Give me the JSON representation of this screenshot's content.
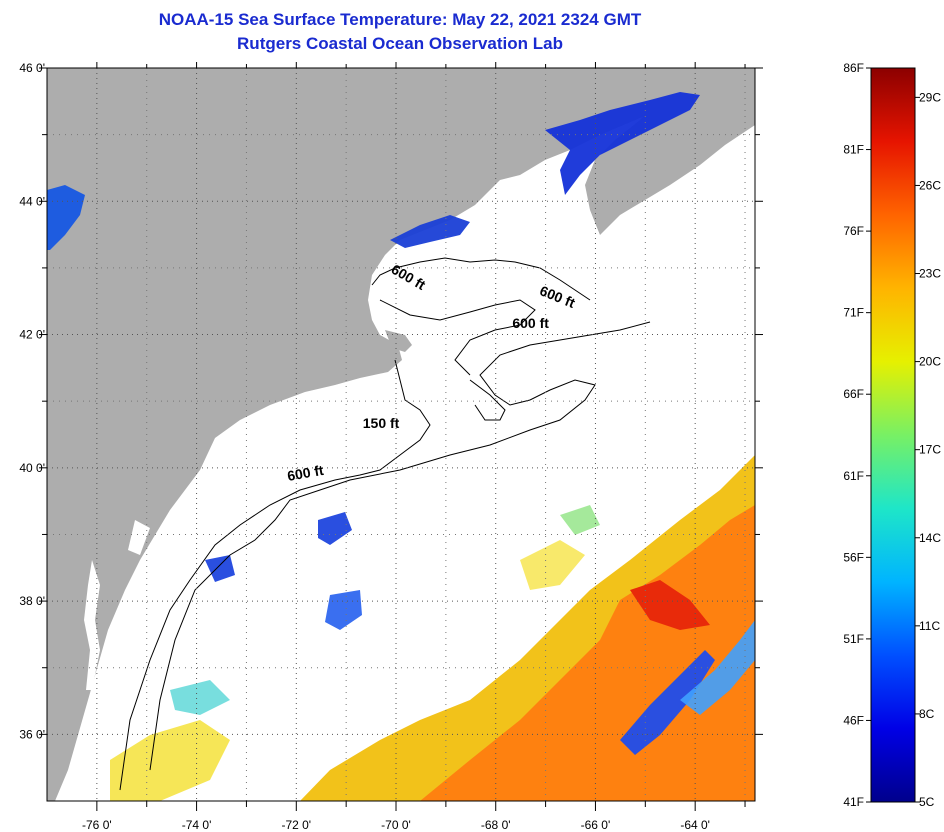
{
  "title": "NOAA-15 Sea Surface Temperature:  May 22, 2021 2324 GMT",
  "subtitle": "Rutgers Coastal Ocean Observation Lab",
  "colors": {
    "title": "#1a2bd0",
    "land": "#adadad",
    "no_data": "#ffffff",
    "contour": "#000000"
  },
  "map": {
    "lon_range": [
      -77.0,
      -62.8
    ],
    "lat_range": [
      35.0,
      46.0
    ],
    "lon_ticks": [
      {
        "value": -76,
        "label": "-76 0'"
      },
      {
        "value": -74,
        "label": "-74 0'"
      },
      {
        "value": -72,
        "label": "-72 0'"
      },
      {
        "value": -70,
        "label": "-70 0'"
      },
      {
        "value": -68,
        "label": "-68 0'"
      },
      {
        "value": -66,
        "label": "-66 0'"
      },
      {
        "value": -64,
        "label": "-64 0'"
      }
    ],
    "lat_ticks": [
      {
        "value": 46,
        "label": "46 0'"
      },
      {
        "value": 44,
        "label": "44 0'"
      },
      {
        "value": 42,
        "label": "42 0'"
      },
      {
        "value": 40,
        "label": "40 0'"
      },
      {
        "value": 38,
        "label": "38 0'"
      },
      {
        "value": 36,
        "label": "36 0'"
      }
    ],
    "contour_labels": [
      {
        "text": "600 ft",
        "lon": -69.8,
        "lat": 42.8,
        "angle": 30
      },
      {
        "text": "600 ft",
        "lon": -66.8,
        "lat": 42.5,
        "angle": 22
      },
      {
        "text": "600 ft",
        "lon": -67.3,
        "lat": 42.1,
        "angle": 0
      },
      {
        "text": "150 ft",
        "lon": -70.3,
        "lat": 40.6,
        "angle": 0
      },
      {
        "text": "600 ft",
        "lon": -71.8,
        "lat": 39.85,
        "angle": -10
      }
    ]
  },
  "colorbar": {
    "fahrenheit": [
      {
        "value": 86,
        "label": "86F"
      },
      {
        "value": 81,
        "label": "81F"
      },
      {
        "value": 76,
        "label": "76F"
      },
      {
        "value": 71,
        "label": "71F"
      },
      {
        "value": 66,
        "label": "66F"
      },
      {
        "value": 61,
        "label": "61F"
      },
      {
        "value": 56,
        "label": "56F"
      },
      {
        "value": 51,
        "label": "51F"
      },
      {
        "value": 46,
        "label": "46F"
      },
      {
        "value": 41,
        "label": "41F"
      }
    ],
    "celsius": [
      {
        "value": 29,
        "label": "29C"
      },
      {
        "value": 26,
        "label": "26C"
      },
      {
        "value": 23,
        "label": "23C"
      },
      {
        "value": 20,
        "label": "20C"
      },
      {
        "value": 17,
        "label": "17C"
      },
      {
        "value": 14,
        "label": "14C"
      },
      {
        "value": 11,
        "label": "11C"
      },
      {
        "value": 8,
        "label": "8C"
      },
      {
        "value": 5,
        "label": "5C"
      }
    ],
    "stops": [
      "#00008c",
      "#0000e6",
      "#0050ff",
      "#00b4ff",
      "#1ee6c8",
      "#78f064",
      "#e6f000",
      "#ffb400",
      "#ff6400",
      "#e61400",
      "#8c0000"
    ]
  }
}
